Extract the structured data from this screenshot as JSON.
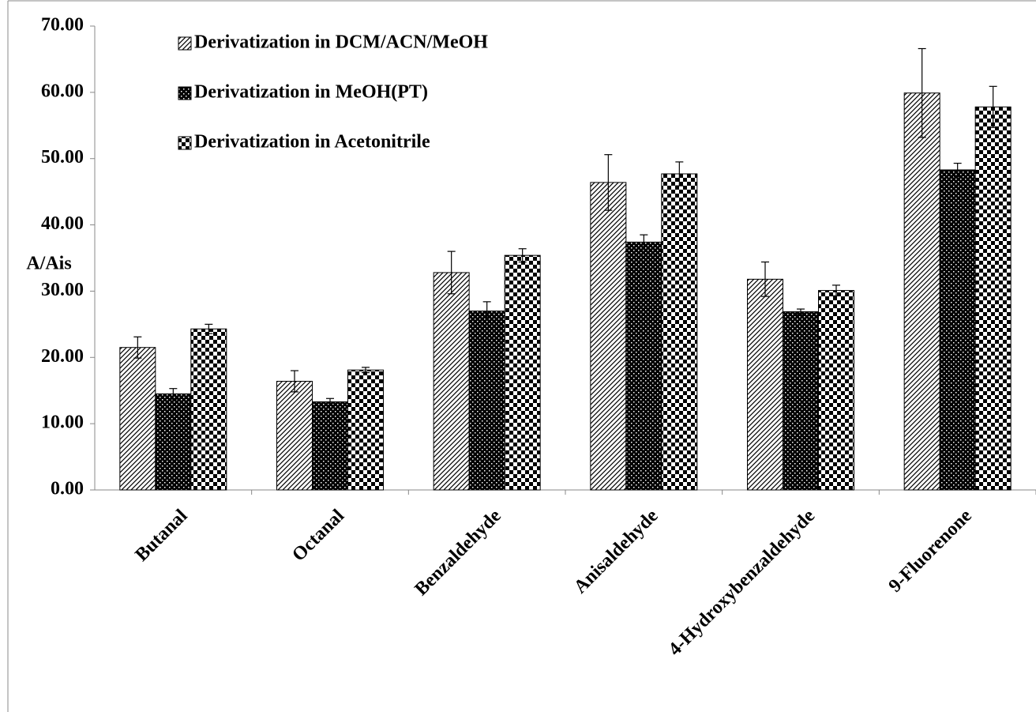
{
  "chart_data": {
    "type": "bar",
    "y_label": "A/Ais",
    "categories": [
      "Butanal",
      "Octanal",
      "Benzaldehyde",
      "Anisaldehyde",
      "4-Hydroxybenzaldehyde",
      "9-Fluorenone"
    ],
    "series": [
      {
        "name": "Derivatization in DCM/ACN/MeOH",
        "color": "#000000",
        "pattern": "diagonal",
        "values": [
          21.5,
          16.4,
          32.8,
          46.4,
          31.8,
          59.9
        ],
        "errors": [
          1.6,
          1.6,
          3.2,
          4.2,
          2.6,
          6.7
        ]
      },
      {
        "name": "Derivatization in MeOH(PT)",
        "color": "#000000",
        "pattern": "dots",
        "values": [
          14.5,
          13.3,
          27.0,
          37.4,
          26.9,
          48.3
        ],
        "errors": [
          0.8,
          0.5,
          1.4,
          1.1,
          0.4,
          1.0
        ]
      },
      {
        "name": "Derivatization in Acetonitrile",
        "color": "#000000",
        "pattern": "checker",
        "values": [
          24.3,
          18.1,
          35.4,
          47.7,
          30.1,
          57.8
        ],
        "errors": [
          0.7,
          0.4,
          1.0,
          1.8,
          0.8,
          3.1
        ]
      }
    ],
    "ylim": [
      0,
      70
    ],
    "yticks": [
      {
        "value": 0,
        "label": "0.00"
      },
      {
        "value": 10,
        "label": "10.00"
      },
      {
        "value": 20,
        "label": "20.00"
      },
      {
        "value": 30,
        "label": "30.00"
      },
      {
        "value": 40,
        "label": "40.00"
      },
      {
        "value": 50,
        "label": "50.00"
      },
      {
        "value": 60,
        "label": "60.00"
      },
      {
        "value": 70,
        "label": "70.00"
      }
    ],
    "grid": false,
    "legend": "upper-left"
  }
}
